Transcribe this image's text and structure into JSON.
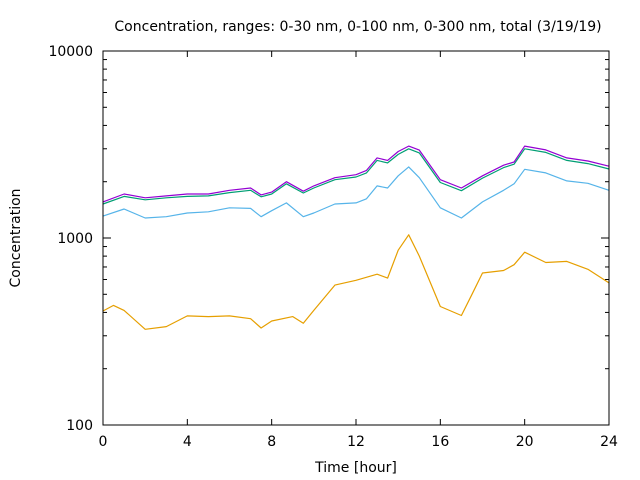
{
  "chart_data": {
    "type": "line",
    "title": "Concentration, ranges: 0-30 nm, 0-100 nm, 0-300 nm, total (3/19/19)",
    "xlabel": "Time [hour]",
    "ylabel": "Concentration",
    "xlim": [
      0,
      24
    ],
    "ylim": [
      100,
      10000
    ],
    "yscale": "log",
    "xticks": [
      "0",
      "4",
      "8",
      "12",
      "16",
      "20",
      "24"
    ],
    "yticks": [
      "100",
      "1000",
      "10000"
    ],
    "grid": false,
    "legend": "none",
    "series": [
      {
        "name": "total",
        "color": "#9400d3",
        "x": [
          0,
          1,
          2,
          3,
          4,
          5,
          6,
          7,
          7.5,
          8,
          8.7,
          9.5,
          10,
          11,
          12,
          12.5,
          13,
          13.5,
          14,
          14.5,
          15,
          16,
          17,
          18,
          19,
          19.5,
          20,
          21,
          22,
          23,
          24
        ],
        "values": [
          1560,
          1720,
          1640,
          1680,
          1720,
          1720,
          1800,
          1850,
          1700,
          1760,
          2000,
          1780,
          1900,
          2100,
          2180,
          2300,
          2680,
          2600,
          2900,
          3100,
          2950,
          2050,
          1850,
          2150,
          2450,
          2550,
          3100,
          2960,
          2680,
          2580,
          2420
        ]
      },
      {
        "name": "0-300 nm",
        "color": "#009e73",
        "x": [
          0,
          1,
          2,
          3,
          4,
          5,
          6,
          7,
          7.5,
          8,
          8.7,
          9.5,
          10,
          11,
          12,
          12.5,
          13,
          13.5,
          14,
          14.5,
          15,
          16,
          17,
          18,
          19,
          19.5,
          20,
          21,
          22,
          23,
          24
        ],
        "values": [
          1520,
          1670,
          1600,
          1640,
          1670,
          1680,
          1750,
          1800,
          1660,
          1720,
          1950,
          1740,
          1850,
          2050,
          2120,
          2230,
          2600,
          2520,
          2800,
          3000,
          2850,
          1980,
          1790,
          2090,
          2380,
          2480,
          3000,
          2870,
          2600,
          2500,
          2340
        ]
      },
      {
        "name": "0-100 nm",
        "color": "#56b4e9",
        "x": [
          0,
          1,
          2,
          3,
          4,
          5,
          6,
          7,
          7.5,
          8,
          8.7,
          9.5,
          10,
          11,
          12,
          12.5,
          13,
          13.5,
          14,
          14.5,
          15,
          16,
          17,
          18,
          19,
          19.5,
          20,
          21,
          22,
          23,
          24
        ],
        "values": [
          1310,
          1430,
          1280,
          1300,
          1360,
          1380,
          1450,
          1440,
          1300,
          1400,
          1540,
          1300,
          1360,
          1520,
          1540,
          1620,
          1900,
          1850,
          2150,
          2400,
          2100,
          1450,
          1280,
          1560,
          1800,
          1950,
          2330,
          2230,
          2020,
          1960,
          1800
        ]
      },
      {
        "name": "0-30 nm",
        "color": "#e69f00",
        "x": [
          0,
          0.5,
          1,
          2,
          3,
          4,
          5,
          6,
          7,
          7.5,
          8,
          9,
          9.5,
          10,
          11,
          12,
          13,
          13.5,
          14,
          14.5,
          15,
          16,
          17,
          17.5,
          18,
          19,
          19.5,
          20,
          21,
          22,
          23,
          24
        ],
        "values": [
          407,
          436,
          410,
          325,
          336,
          383,
          380,
          383,
          370,
          330,
          360,
          380,
          350,
          410,
          560,
          594,
          640,
          610,
          860,
          1040,
          800,
          430,
          385,
          500,
          650,
          670,
          720,
          840,
          740,
          750,
          680,
          575
        ]
      }
    ]
  }
}
